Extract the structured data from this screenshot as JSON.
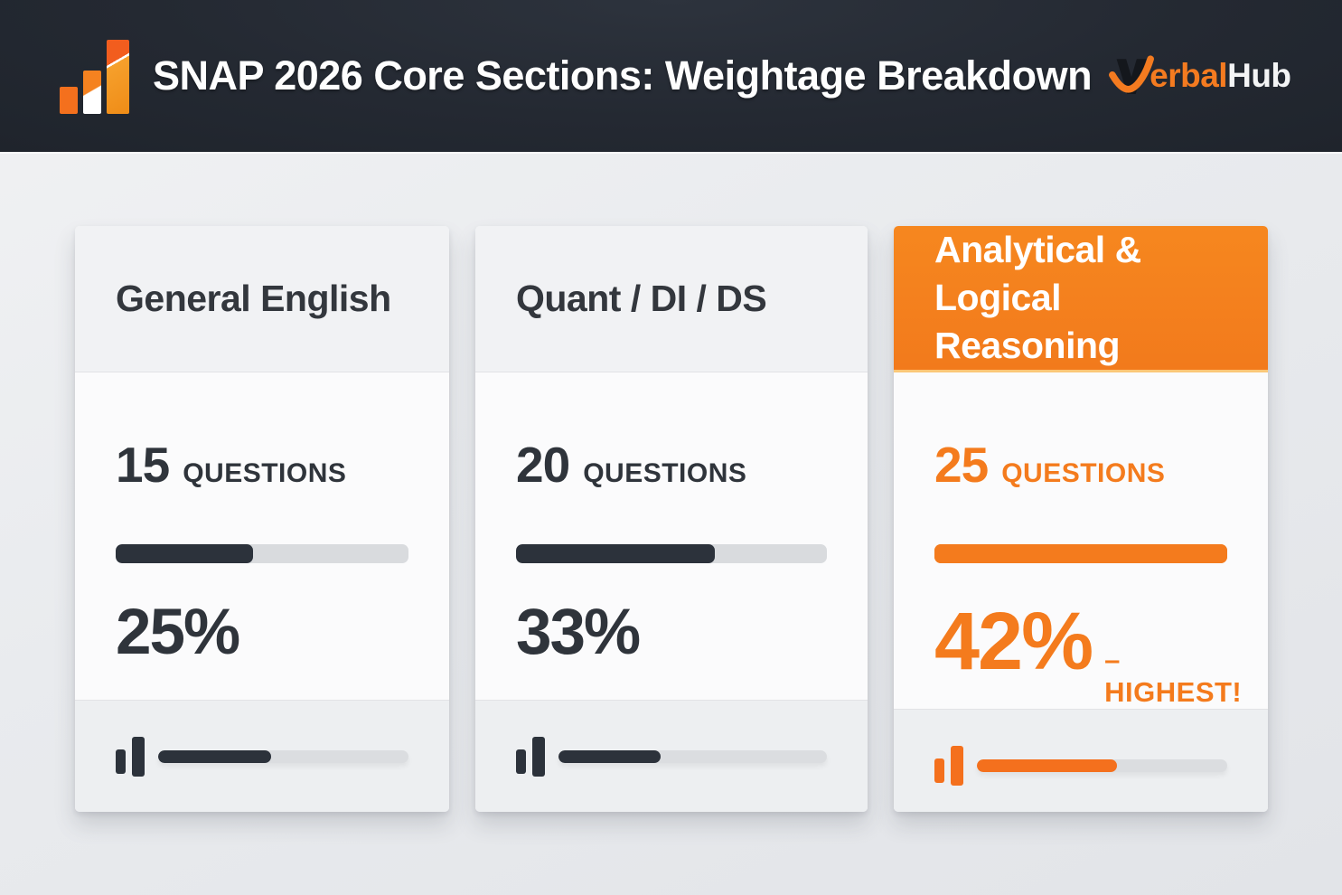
{
  "header": {
    "title": "SNAP 2026 Core Sections: Weightage Breakdown",
    "logo_icon": "bar-chart-icon",
    "brand_icon": "verbalhub-v-check-icon",
    "brand_orange": "erbal",
    "brand_hub": "Hub"
  },
  "cards": [
    {
      "title_line1": "General English",
      "title_line2": "",
      "questions_count": "15",
      "questions_label": "QUESTIONS",
      "weightage": "25%",
      "highlight": "",
      "bar_fill_percent": 47,
      "footer_fill_percent": 45,
      "accent_color": "#2c323b"
    },
    {
      "title_line1": "Quant / DI / DS",
      "title_line2": "",
      "questions_count": "20",
      "questions_label": "QUESTIONS",
      "weightage": "33%",
      "highlight": "",
      "bar_fill_percent": 64,
      "footer_fill_percent": 38,
      "accent_color": "#2c323b"
    },
    {
      "title_line1": "Analytical &",
      "title_line2": "Logical Reasoning",
      "questions_count": "25",
      "questions_label": "QUESTIONS",
      "weightage": "42%",
      "highlight": "– HIGHEST!",
      "bar_fill_percent": 100,
      "footer_fill_percent": 56,
      "accent_color": "#f47b20"
    }
  ],
  "colors": {
    "orange_accent": "#f47b20",
    "dark_accent": "#2c323b",
    "header_background": "#242932",
    "page_background": "#e9ebee"
  },
  "chart_data": {
    "type": "bar",
    "title": "SNAP 2026 Core Sections: Weightage Breakdown",
    "categories": [
      "General English",
      "Quant / DI / DS",
      "Analytical & Logical Reasoning"
    ],
    "series": [
      {
        "name": "Questions",
        "values": [
          15,
          20,
          25
        ]
      },
      {
        "name": "Weightage %",
        "values": [
          25,
          33,
          42
        ]
      }
    ],
    "annotations": [
      "42% – HIGHEST!"
    ],
    "legend_position": "none",
    "grid": false
  }
}
